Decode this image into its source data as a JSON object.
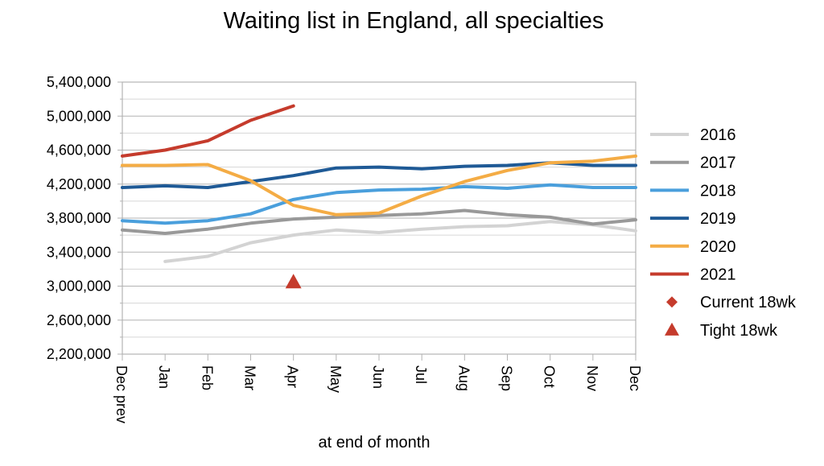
{
  "chart_data": {
    "type": "line",
    "title": "Waiting list in England, all specialties",
    "xlabel": "at end of month",
    "ylabel": "",
    "categories": [
      "Dec prev",
      "Jan",
      "Feb",
      "Mar",
      "Apr",
      "May",
      "Jun",
      "Jul",
      "Aug",
      "Sep",
      "Oct",
      "Nov",
      "Dec"
    ],
    "ylim": [
      2200000,
      5400000
    ],
    "yticks": [
      2200000,
      2600000,
      3000000,
      3400000,
      3800000,
      4200000,
      4600000,
      5000000,
      5400000
    ],
    "ytick_labels": [
      "2,200,000",
      "2,600,000",
      "3,000,000",
      "3,400,000",
      "3,800,000",
      "4,200,000",
      "4,600,000",
      "5,000,000",
      "5,400,000"
    ],
    "grid": true,
    "legend_position": "right",
    "series": [
      {
        "name": "2016",
        "color": "#d3d3d3",
        "marker": "line",
        "values": [
          null,
          3290000,
          3350000,
          3510000,
          3600000,
          3660000,
          3630000,
          3670000,
          3700000,
          3710000,
          3760000,
          3720000,
          3650000
        ]
      },
      {
        "name": "2017",
        "color": "#999999",
        "marker": "line",
        "values": [
          3660000,
          3620000,
          3670000,
          3740000,
          3790000,
          3810000,
          3830000,
          3850000,
          3890000,
          3840000,
          3810000,
          3730000,
          3780000
        ]
      },
      {
        "name": "2018",
        "color": "#4a9fdc",
        "marker": "line",
        "values": [
          3770000,
          3740000,
          3770000,
          3850000,
          4020000,
          4100000,
          4130000,
          4140000,
          4170000,
          4150000,
          4190000,
          4160000,
          4160000
        ]
      },
      {
        "name": "2019",
        "color": "#1f5a96",
        "marker": "line",
        "values": [
          4160000,
          4180000,
          4160000,
          4230000,
          4300000,
          4390000,
          4400000,
          4380000,
          4410000,
          4420000,
          4450000,
          4420000,
          4420000
        ]
      },
      {
        "name": "2020",
        "color": "#f4ac45",
        "marker": "line",
        "values": [
          4420000,
          4420000,
          4430000,
          4240000,
          3950000,
          3840000,
          3860000,
          4060000,
          4230000,
          4360000,
          4450000,
          4470000,
          4530000
        ]
      },
      {
        "name": "2021",
        "color": "#c53b2c",
        "marker": "line",
        "values": [
          4530000,
          4600000,
          4710000,
          4950000,
          5120000,
          null,
          null,
          null,
          null,
          null,
          null,
          null,
          null
        ]
      },
      {
        "name": "Current 18wk",
        "color": "#c53b2c",
        "marker": "diamond",
        "values": [
          null,
          null,
          null,
          null,
          null,
          null,
          null,
          null,
          null,
          null,
          null,
          null,
          null
        ]
      },
      {
        "name": "Tight 18wk",
        "color": "#c53b2c",
        "marker": "triangle",
        "values": [
          null,
          null,
          null,
          null,
          3050000,
          null,
          null,
          null,
          null,
          null,
          null,
          null,
          null
        ]
      }
    ]
  }
}
